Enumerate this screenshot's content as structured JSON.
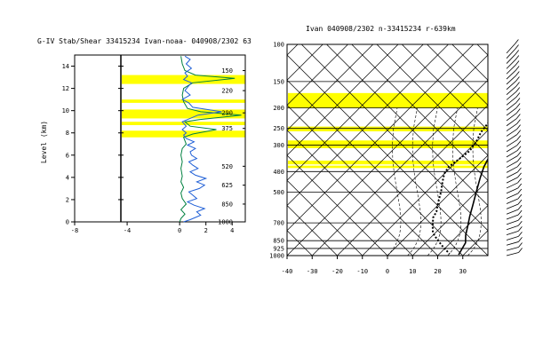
{
  "chart_data": [
    {
      "type": "line",
      "title": "G-IV Stab/Shear 33415234 Ivan-noaa- 040908/2302 63",
      "ylabel": "Level (km)",
      "xlabel": "",
      "xlim": [
        -8,
        5
      ],
      "ylim": [
        0,
        15
      ],
      "x_ticks": [
        -8,
        -4,
        0,
        2,
        4
      ],
      "y_ticks": [
        0,
        2,
        4,
        6,
        8,
        10,
        12,
        14
      ],
      "right_axis_ticks": [
        {
          "level_km": 13.6,
          "label": "150"
        },
        {
          "level_km": 11.8,
          "label": "220"
        },
        {
          "level_km": 9.8,
          "label": "290"
        },
        {
          "level_km": 8.4,
          "label": "375"
        },
        {
          "level_km": 5.0,
          "label": "520"
        },
        {
          "level_km": 3.3,
          "label": "625"
        },
        {
          "level_km": 1.6,
          "label": "850"
        },
        {
          "level_km": 0.0,
          "label": "1000"
        }
      ],
      "highlight_bands_km": [
        [
          12.4,
          13.2
        ],
        [
          10.7,
          11.0
        ],
        [
          9.3,
          10.1
        ],
        [
          8.7,
          9.0
        ],
        [
          7.6,
          8.2
        ]
      ],
      "colors": {
        "green": "#008040",
        "blue": "#1f5fd6",
        "highlight": "#ffff00",
        "axis": "#000000"
      },
      "series": [
        {
          "color": "green",
          "points": [
            [
              0.0,
              0.0
            ],
            [
              0.1,
              0.3
            ],
            [
              0.4,
              0.7
            ],
            [
              0.1,
              1.1
            ],
            [
              0.5,
              1.6
            ],
            [
              0.2,
              2.1
            ],
            [
              0.1,
              2.6
            ],
            [
              0.3,
              3.1
            ],
            [
              0.1,
              3.6
            ],
            [
              0.2,
              4.1
            ],
            [
              0.1,
              4.8
            ],
            [
              0.2,
              5.4
            ],
            [
              0.1,
              6.0
            ],
            [
              0.2,
              6.6
            ],
            [
              0.5,
              7.0
            ],
            [
              0.3,
              7.6
            ],
            [
              1.0,
              7.9
            ],
            [
              2.8,
              8.3
            ],
            [
              0.8,
              8.6
            ],
            [
              0.4,
              9.0
            ],
            [
              1.5,
              9.2
            ],
            [
              4.7,
              9.6
            ],
            [
              1.6,
              9.9
            ],
            [
              0.6,
              10.2
            ],
            [
              0.3,
              10.8
            ],
            [
              0.2,
              11.4
            ],
            [
              0.3,
              12.0
            ],
            [
              1.0,
              12.5
            ],
            [
              4.2,
              12.9
            ],
            [
              1.2,
              13.2
            ],
            [
              0.4,
              13.6
            ],
            [
              0.2,
              14.2
            ],
            [
              0.1,
              14.9
            ]
          ]
        },
        {
          "color": "blue",
          "points": [
            [
              0.3,
              0.0
            ],
            [
              0.8,
              0.2
            ],
            [
              1.2,
              0.4
            ],
            [
              1.6,
              0.6
            ],
            [
              1.3,
              0.9
            ],
            [
              1.9,
              1.2
            ],
            [
              1.1,
              1.5
            ],
            [
              0.6,
              1.8
            ],
            [
              1.3,
              2.1
            ],
            [
              1.0,
              2.4
            ],
            [
              0.7,
              2.7
            ],
            [
              1.5,
              3.0
            ],
            [
              1.9,
              3.3
            ],
            [
              1.3,
              3.6
            ],
            [
              2.0,
              3.9
            ],
            [
              1.2,
              4.2
            ],
            [
              0.8,
              4.5
            ],
            [
              1.4,
              4.8
            ],
            [
              1.0,
              5.1
            ],
            [
              0.7,
              5.4
            ],
            [
              1.3,
              5.7
            ],
            [
              0.9,
              6.0
            ],
            [
              0.8,
              6.3
            ],
            [
              1.2,
              6.6
            ],
            [
              0.6,
              6.9
            ],
            [
              1.1,
              7.2
            ],
            [
              0.5,
              7.5
            ],
            [
              0.3,
              7.8
            ],
            [
              0.5,
              8.0
            ],
            [
              0.2,
              8.3
            ],
            [
              0.5,
              8.6
            ],
            [
              0.2,
              9.0
            ],
            [
              1.4,
              9.6
            ],
            [
              3.2,
              9.9
            ],
            [
              1.0,
              10.3
            ],
            [
              0.7,
              10.7
            ],
            [
              0.2,
              11.0
            ],
            [
              0.8,
              11.4
            ],
            [
              0.4,
              11.8
            ],
            [
              0.6,
              12.1
            ],
            [
              0.9,
              12.5
            ],
            [
              0.3,
              12.8
            ],
            [
              0.6,
              13.1
            ],
            [
              0.4,
              13.4
            ],
            [
              0.9,
              13.8
            ],
            [
              0.5,
              14.2
            ],
            [
              0.8,
              14.6
            ],
            [
              0.4,
              14.9
            ]
          ]
        }
      ]
    },
    {
      "type": "line",
      "title": "Ivan 040908/2302 n-33415234 r-639km",
      "xlabel": "",
      "ylabel": "",
      "xlim": [
        -40,
        40
      ],
      "ylim": [
        1000,
        100
      ],
      "y_scale": "log",
      "x_ticks": [
        -40,
        -30,
        -20,
        -10,
        0,
        10,
        20,
        30
      ],
      "y_ticks": [
        100,
        150,
        200,
        250,
        300,
        400,
        500,
        700,
        850,
        925,
        1000
      ],
      "highlight_bands_hpa": [
        [
          170,
          200
        ],
        [
          245,
          258
        ],
        [
          285,
          310
        ],
        [
          355,
          370
        ],
        [
          375,
          385
        ]
      ],
      "colors": {
        "highlight": "#ffff00",
        "line": "#000000"
      },
      "series": [
        {
          "name": "",
          "style": "solid",
          "points": [
            [
              -10,
              170
            ],
            [
              -8,
              200
            ],
            [
              -6,
              240
            ],
            [
              -3,
              280
            ],
            [
              0,
              320
            ],
            [
              3,
              380
            ],
            [
              6,
              430
            ],
            [
              10,
              500
            ],
            [
              14,
              580
            ],
            [
              17,
              650
            ],
            [
              20,
              720
            ],
            [
              23,
              800
            ],
            [
              26,
              870
            ],
            [
              27,
              930
            ],
            [
              28,
              990
            ]
          ]
        },
        {
          "name": "",
          "style": "dotted",
          "points": [
            [
              -12,
              195
            ],
            [
              -13,
              230
            ],
            [
              -12,
              260
            ],
            [
              -10,
              290
            ],
            [
              -9,
              320
            ],
            [
              -10,
              350
            ],
            [
              -11,
              380
            ],
            [
              -10,
              410
            ],
            [
              -8,
              440
            ],
            [
              -6,
              470
            ],
            [
              -4,
              500
            ],
            [
              -2,
              540
            ],
            [
              0,
              580
            ],
            [
              2,
              620
            ],
            [
              3,
              660
            ],
            [
              5,
              700
            ],
            [
              7,
              740
            ],
            [
              9,
              780
            ],
            [
              12,
              820
            ],
            [
              15,
              860
            ],
            [
              18,
              900
            ],
            [
              21,
              940
            ],
            [
              24,
              980
            ]
          ]
        }
      ],
      "wind_barbs": {
        "count": 40,
        "from_hpa": 1000,
        "to_hpa": 110
      }
    }
  ]
}
